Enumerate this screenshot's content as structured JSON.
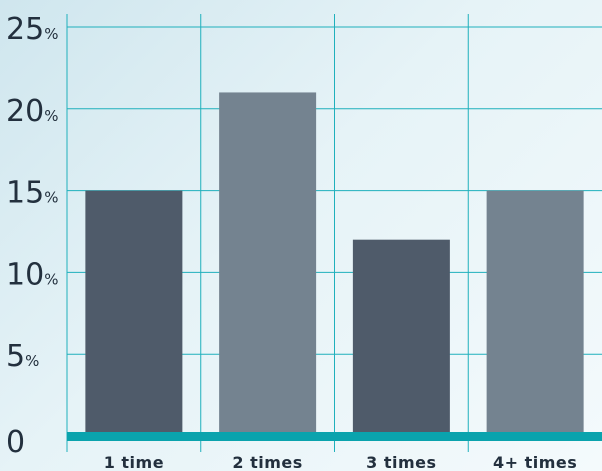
{
  "chart_data": {
    "type": "bar",
    "categories": [
      "1 time",
      "2 times",
      "3 times",
      "4+ times"
    ],
    "values": [
      15,
      21,
      12,
      15
    ],
    "ylim": [
      0,
      25
    ],
    "yticks": [
      {
        "value": 0,
        "label": "0",
        "unit": ""
      },
      {
        "value": 5,
        "label": "5",
        "unit": "%"
      },
      {
        "value": 10,
        "label": "10",
        "unit": "%"
      },
      {
        "value": 15,
        "label": "15",
        "unit": "%"
      },
      {
        "value": 20,
        "label": "20",
        "unit": "%"
      },
      {
        "value": 25,
        "label": "25",
        "unit": "%"
      }
    ],
    "bar_colors": [
      "#4f5b6a",
      "#748390",
      "#4f5b6a",
      "#748390"
    ],
    "grid": true,
    "grid_color": "#1fb0bc",
    "baseline_color": "#0aa3ad"
  }
}
